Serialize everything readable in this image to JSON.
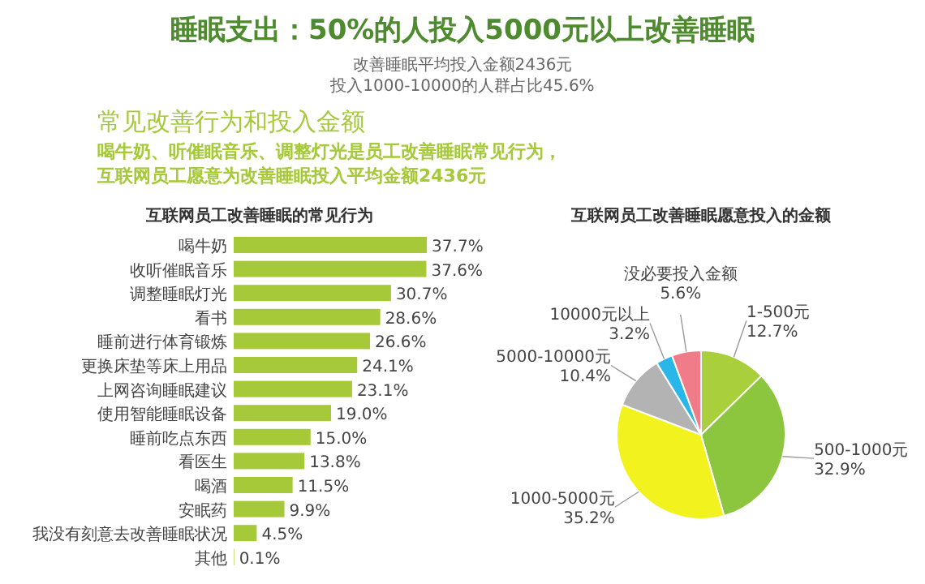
{
  "chart_data": [
    {
      "type": "other",
      "title": "睡眠支出：50%的人投入5000元以上改善睡眠",
      "subtitle": "改善睡眠平均投入金额2436元",
      "annotations": [
        "投入1000-10000的人群占比45.6%",
        "常见改善行为和投入金额",
        "喝牛奶、听催眠音乐、调整灯光是员工改善睡眠常见行为，",
        "互联网员工愿意为改善睡眠投入平均金额2436元"
      ]
    },
    {
      "type": "bar",
      "orientation": "horizontal",
      "title": "互联网员工改善睡眠的常见行为",
      "categories": [
        "喝牛奶",
        "收听催眠音乐",
        "调整睡眠灯光",
        "看书",
        "睡前进行体育锻炼",
        "更换床垫等床上用品",
        "上网咨询睡眠建议",
        "使用智能睡眠设备",
        "睡前吃点东西",
        "看医生",
        "喝酒",
        "安眠药",
        "我没有刻意去改善睡眠状况",
        "其他"
      ],
      "values": [
        37.7,
        37.6,
        30.7,
        28.6,
        26.6,
        24.1,
        23.1,
        19.0,
        15.0,
        13.8,
        11.5,
        9.9,
        4.5,
        0.1
      ],
      "value_labels": [
        "37.7%",
        "37.6%",
        "30.7%",
        "28.6%",
        "26.6%",
        "24.1%",
        "23.1%",
        "19.0%",
        "15.0%",
        "13.8%",
        "11.5%",
        "9.9%",
        "4.5%",
        "0.1%"
      ],
      "color": "#a6c93a",
      "xlim": [
        0,
        38
      ],
      "tick_labels": "y"
    },
    {
      "type": "pie",
      "title": "互联网员工改善睡眠愿意投入的金额",
      "categories": [
        "1-500元",
        "500-1000元",
        "1000-5000元",
        "5000-10000元",
        "10000元以上",
        "没必要投入金额"
      ],
      "values": [
        12.7,
        32.9,
        35.2,
        10.4,
        3.2,
        5.6
      ],
      "value_labels": [
        "12.7%",
        "32.9%",
        "35.2%",
        "10.4%",
        "3.2%",
        "5.6%"
      ],
      "colors": [
        "#a9cf3c",
        "#8cc63f",
        "#f2f21e",
        "#b3b3b3",
        "#29b6e8",
        "#f07c8a"
      ]
    }
  ]
}
